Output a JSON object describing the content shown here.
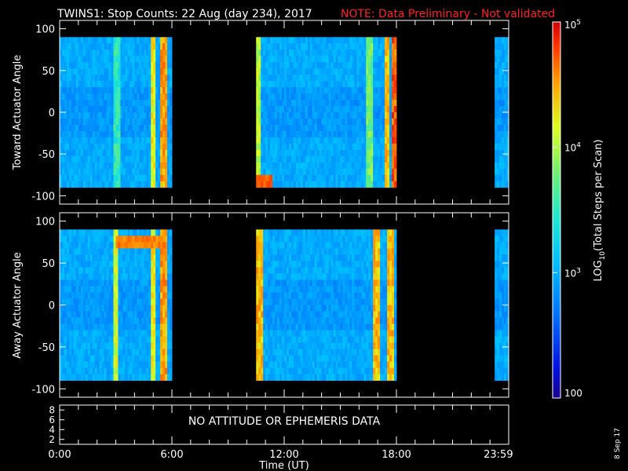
{
  "title": "TWINS1: Stop Counts: 22 Aug (day 234), 2017",
  "note": "NOTE: Data Preliminary - Not validated",
  "date_stamp": "8 Sep 17",
  "colors": {
    "background": "#000000",
    "axes": "#ffffff",
    "note": "#ff2020"
  },
  "chart_data": [
    {
      "type": "heatmap",
      "panel": "toward",
      "ylabel": "Toward Actuator Angle",
      "ylim": [
        -110,
        110
      ],
      "yticks": [
        100,
        50,
        0,
        -50,
        -100
      ],
      "xlim": [
        0,
        24
      ],
      "data_y_range": [
        -90,
        90
      ],
      "data_intervals_hours": [
        [
          0.0,
          6.0
        ],
        [
          10.5,
          18.0
        ],
        [
          23.25,
          24.0
        ]
      ],
      "bright_bands": [
        {
          "t": 3.1,
          "level": 3.7
        },
        {
          "t": 5.0,
          "level": 4.4
        },
        {
          "t": 5.6,
          "level": 4.7
        },
        {
          "t": 10.6,
          "level": 4.2
        },
        {
          "t": 16.6,
          "level": 4.0
        },
        {
          "t": 17.5,
          "level": 4.6
        },
        {
          "t": 17.95,
          "level": 4.9
        }
      ],
      "hot_spot": {
        "t": [
          10.5,
          11.3
        ],
        "y": [
          -90,
          -75
        ],
        "level": 4.8
      }
    },
    {
      "type": "heatmap",
      "panel": "away",
      "ylabel": "Away Actuator Angle",
      "ylim": [
        -110,
        110
      ],
      "yticks": [
        100,
        50,
        0,
        -50,
        -100
      ],
      "xlim": [
        0,
        24
      ],
      "data_y_range": [
        -90,
        90
      ],
      "data_intervals_hours": [
        [
          0.0,
          6.0
        ],
        [
          10.5,
          18.0
        ],
        [
          23.25,
          24.0
        ]
      ],
      "bright_bands": [
        {
          "t": 3.0,
          "level": 4.3
        },
        {
          "t": 5.0,
          "level": 4.4
        },
        {
          "t": 5.6,
          "level": 4.7
        },
        {
          "t": 10.7,
          "level": 4.6
        },
        {
          "t": 16.9,
          "level": 4.6
        },
        {
          "t": 17.7,
          "level": 4.6
        }
      ],
      "hot_spot": {
        "t": [
          3.0,
          5.5
        ],
        "y": [
          65,
          85
        ],
        "level": 4.7
      }
    },
    {
      "type": "line",
      "panel": "attitude",
      "yticks": [
        8,
        6,
        4,
        2
      ],
      "ylim": [
        1,
        9
      ],
      "message": "NO ATTITUDE OR EPHEMERIS DATA"
    }
  ],
  "x_axis": {
    "label": "Time (UT)",
    "ticks": [
      {
        "t": 0,
        "label": "0:00"
      },
      {
        "t": 6,
        "label": "6:00"
      },
      {
        "t": 12,
        "label": "12:00"
      },
      {
        "t": 18,
        "label": "18:00"
      },
      {
        "t": 23.983,
        "label": "23:59"
      }
    ]
  },
  "colorbar": {
    "scale": "log",
    "min": 100,
    "max": 100000,
    "tick_labels": [
      "100",
      "10",
      "10",
      "10"
    ],
    "tick_exps": [
      "",
      "3",
      "4",
      "5"
    ],
    "tick_levels": [
      2,
      3,
      4,
      5
    ],
    "label_pre": "LOG",
    "label_sub": "10",
    "label_post": "(Total Steps per Scan)"
  }
}
